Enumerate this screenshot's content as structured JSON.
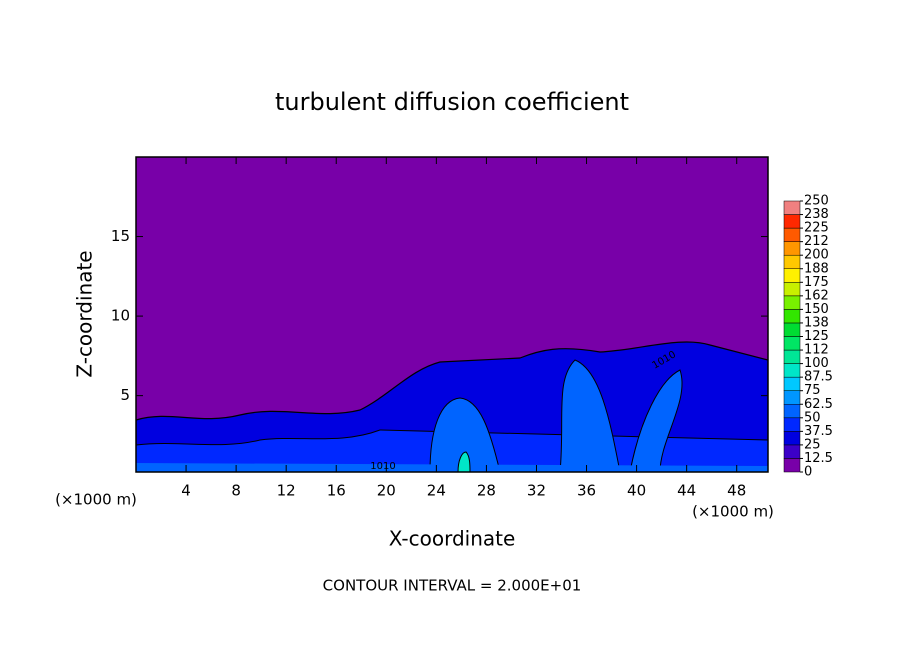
{
  "chart_data": {
    "type": "contour",
    "title": "turbulent diffusion coefficient",
    "x_label": "X-coordinate",
    "y_label": "Z-coordinate",
    "x_unit": "(×1000 m)",
    "footnote": "CONTOUR INTERVAL = 2.000E+01",
    "contour_labels": [
      "1010",
      "1010"
    ],
    "xlim": [
      0,
      50.5
    ],
    "xticks": [
      4,
      8,
      12,
      16,
      20,
      24,
      28,
      32,
      36,
      40,
      44,
      48
    ],
    "ylim": [
      0.2,
      20
    ],
    "yticks": [
      5,
      10,
      15
    ],
    "colorbar_lim": [
      0,
      250
    ],
    "colorbar_ticks": [
      0,
      12.5,
      25,
      37.5,
      50,
      62.5,
      75,
      87.5,
      100,
      {
        "value": 112.5,
        "label": "112"
      },
      125,
      {
        "value": 137.5,
        "label": "138"
      },
      150,
      {
        "value": 162.5,
        "label": "162"
      },
      175,
      {
        "value": 187.5,
        "label": "188"
      },
      200,
      {
        "value": 212.5,
        "label": "212"
      },
      225,
      {
        "value": 237.5,
        "label": "238"
      },
      250
    ],
    "colorbar_colors": [
      "#7800a8",
      "#3c00c8",
      "#0000e0",
      "#0028ff",
      "#0064ff",
      "#0096ff",
      "#00c8ff",
      "#00e6c8",
      "#00e696",
      "#00e664",
      "#00dc32",
      "#32e600",
      "#78f000",
      "#c8f000",
      "#fff000",
      "#ffc800",
      "#ff9600",
      "#ff5a00",
      "#ff2800",
      "#f08080"
    ]
  }
}
